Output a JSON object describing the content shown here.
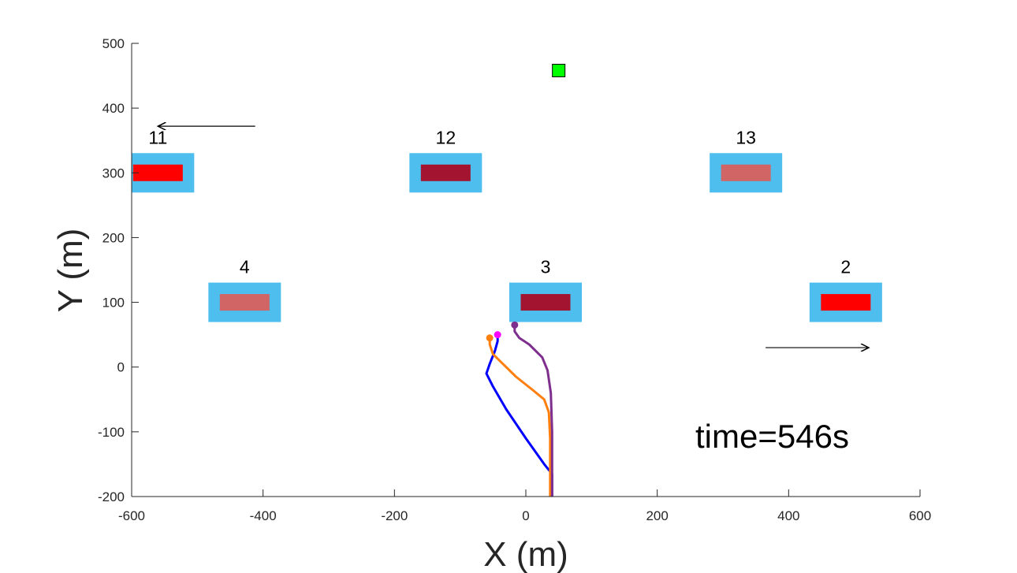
{
  "chart_data": {
    "type": "scatter",
    "xlabel": "X (m)",
    "ylabel": "Y (m)",
    "xlim": [
      -600,
      600
    ],
    "ylim": [
      -200,
      500
    ],
    "xticks": [
      -600,
      -400,
      -200,
      0,
      200,
      400,
      600
    ],
    "yticks": [
      -200,
      -100,
      0,
      100,
      200,
      300,
      400,
      500
    ],
    "grid": false,
    "annotation": "time=546s",
    "colors": {
      "zone": "#4dbeee",
      "red": "#ff0000",
      "dark_red": "#a2142f",
      "light_red": "#d16464",
      "green": "#00ff00",
      "blue": "#0000ff",
      "orange": "#ff7f0e",
      "purple": "#7e2f8e",
      "magenta": "#ff00ff"
    },
    "blocks": [
      {
        "label": "11",
        "x": -560,
        "y": 300,
        "fill": "red"
      },
      {
        "label": "12",
        "x": -122,
        "y": 300,
        "fill": "dark_red"
      },
      {
        "label": "13",
        "x": 335,
        "y": 300,
        "fill": "light_red"
      },
      {
        "label": "4",
        "x": -428,
        "y": 100,
        "fill": "light_red"
      },
      {
        "label": "3",
        "x": 30,
        "y": 100,
        "fill": "dark_red"
      },
      {
        "label": "2",
        "x": 487,
        "y": 100,
        "fill": "red"
      }
    ],
    "target": {
      "x": 50,
      "y": 458
    },
    "arrows": [
      {
        "from": [
          -412,
          372
        ],
        "to": [
          -560,
          372
        ]
      },
      {
        "from": [
          365,
          30
        ],
        "to": [
          522,
          30
        ]
      }
    ],
    "series": [
      {
        "color": "blue",
        "points": [
          [
            40,
            -200
          ],
          [
            40,
            -165
          ],
          [
            28,
            -150
          ],
          [
            0,
            -110
          ],
          [
            -30,
            -65
          ],
          [
            -50,
            -30
          ],
          [
            -60,
            -10
          ],
          [
            -55,
            5
          ],
          [
            -47,
            25
          ],
          [
            -43,
            40
          ],
          [
            -43,
            50
          ]
        ]
      },
      {
        "color": "orange",
        "points": [
          [
            37,
            -200
          ],
          [
            37,
            -110
          ],
          [
            35,
            -70
          ],
          [
            28,
            -50
          ],
          [
            10,
            -35
          ],
          [
            -15,
            -15
          ],
          [
            -35,
            5
          ],
          [
            -50,
            20
          ],
          [
            -55,
            35
          ],
          [
            -55,
            45
          ]
        ]
      },
      {
        "color": "purple",
        "points": [
          [
            40,
            -200
          ],
          [
            40,
            -100
          ],
          [
            38,
            -40
          ],
          [
            33,
            -5
          ],
          [
            25,
            15
          ],
          [
            5,
            35
          ],
          [
            -10,
            45
          ],
          [
            -17,
            55
          ],
          [
            -17,
            65
          ]
        ]
      }
    ],
    "markers": [
      {
        "x": -43,
        "y": 50,
        "color": "magenta"
      },
      {
        "x": -55,
        "y": 45,
        "color": "orange"
      },
      {
        "x": -17,
        "y": 65,
        "color": "purple"
      }
    ]
  }
}
